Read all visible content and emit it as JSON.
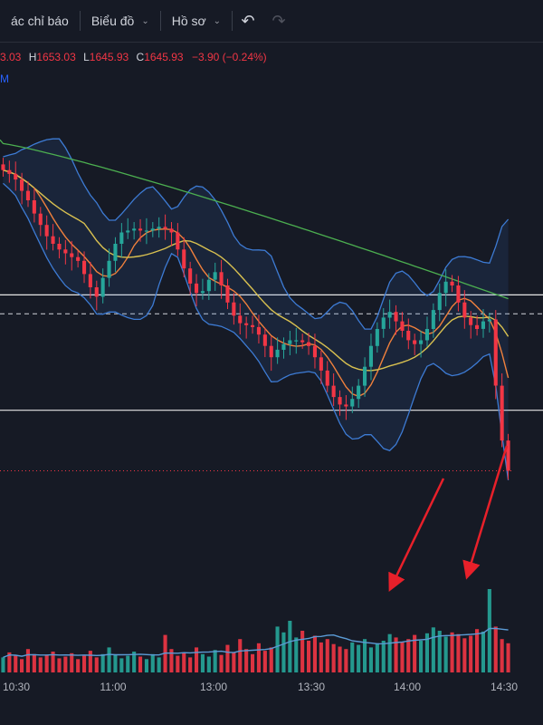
{
  "toolbar": {
    "indicators_label": "ác chỉ báo",
    "chart_label": "Biểu đồ",
    "profile_label": "Hồ sơ",
    "undo_icon": "undo-icon",
    "redo_icon": "redo-icon"
  },
  "legend": {
    "open_value": "3.03",
    "high_label": "H",
    "high_value": "1653.03",
    "low_label": "L",
    "low_value": "1645.93",
    "close_label": "C",
    "close_value": "1645.93",
    "change": "−3.90 (−0.24%)",
    "indicator_label": "M"
  },
  "colors": {
    "background": "#161a25",
    "up": "#26a69a",
    "down": "#f23645",
    "bollinger": "#3d7bd4",
    "ma_fast": "#f0803c",
    "ma_mid": "#d8c050",
    "ma_slow": "#4caf50",
    "volume_ma": "#5b9bd5",
    "annotation_arrow": "#e8202a"
  },
  "chart_data": {
    "type": "candlestick",
    "x_ticks": [
      "10:30",
      "11:00",
      "13:00",
      "13:30",
      "14:00",
      "14:30"
    ],
    "y_range": [
      1643,
      1666
    ],
    "close_series": [
      1661.8,
      1661.6,
      1661.3,
      1660.7,
      1660.2,
      1659.5,
      1658.9,
      1658.3,
      1657.9,
      1657.6,
      1657.4,
      1657.2,
      1657.0,
      1656.3,
      1655.6,
      1655.1,
      1656.1,
      1657.0,
      1657.9,
      1658.5,
      1658.6,
      1658.7,
      1658.6,
      1658.6,
      1658.7,
      1658.8,
      1658.7,
      1658.5,
      1657.6,
      1656.6,
      1655.8,
      1655.3,
      1655.4,
      1656.0,
      1656.4,
      1655.7,
      1654.8,
      1654.1,
      1653.7,
      1653.6,
      1653.5,
      1653.1,
      1652.5,
      1651.9,
      1652.3,
      1652.6,
      1652.8,
      1652.8,
      1652.7,
      1652.5,
      1651.9,
      1651.2,
      1650.4,
      1649.8,
      1649.4,
      1649.3,
      1649.7,
      1650.4,
      1651.4,
      1652.5,
      1653.4,
      1654.0,
      1654.3,
      1653.8,
      1653.3,
      1652.8,
      1652.6,
      1652.8,
      1653.4,
      1654.4,
      1655.3,
      1655.9,
      1655.7,
      1654.8,
      1654.0,
      1653.6,
      1653.4,
      1653.8,
      1653.9,
      1650.4,
      1647.5,
      1645.9
    ],
    "levels": [
      1655.2,
      1654.2,
      1649.1,
      1645.9
    ],
    "volume_y_range": [
      0,
      1
    ],
    "volume_series": [
      0.18,
      0.24,
      0.2,
      0.16,
      0.28,
      0.22,
      0.18,
      0.21,
      0.25,
      0.17,
      0.19,
      0.23,
      0.16,
      0.2,
      0.26,
      0.18,
      0.22,
      0.3,
      0.21,
      0.17,
      0.2,
      0.25,
      0.19,
      0.16,
      0.22,
      0.18,
      0.45,
      0.28,
      0.2,
      0.24,
      0.18,
      0.3,
      0.22,
      0.19,
      0.27,
      0.21,
      0.33,
      0.24,
      0.4,
      0.28,
      0.22,
      0.35,
      0.26,
      0.3,
      0.55,
      0.48,
      0.62,
      0.42,
      0.5,
      0.38,
      0.44,
      0.36,
      0.4,
      0.34,
      0.31,
      0.28,
      0.36,
      0.33,
      0.4,
      0.3,
      0.35,
      0.38,
      0.46,
      0.42,
      0.37,
      0.4,
      0.45,
      0.38,
      0.47,
      0.54,
      0.5,
      0.43,
      0.48,
      0.46,
      0.41,
      0.44,
      0.52,
      0.49,
      1.0,
      0.55,
      0.4,
      0.35
    ]
  }
}
